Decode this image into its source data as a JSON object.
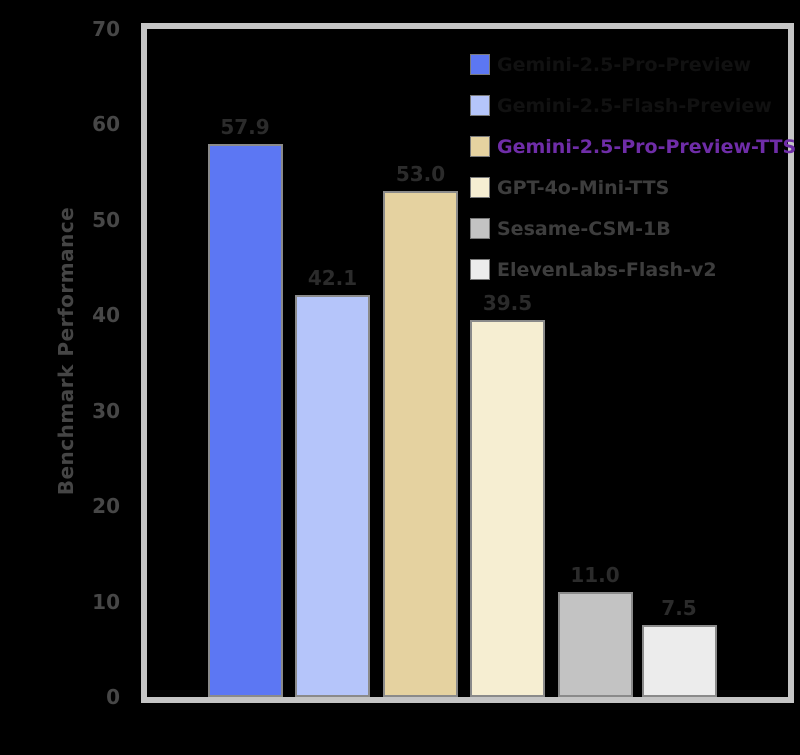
{
  "chart_data": {
    "type": "bar",
    "title": "",
    "xlabel": "",
    "ylabel": "Benchmark Performance",
    "ylim": [
      0,
      70
    ],
    "yticks": [
      0,
      10,
      20,
      30,
      40,
      50,
      60,
      70
    ],
    "grid": false,
    "legend_position": "upper-right",
    "categories": [
      "Gemini-2.5-Pro-Preview",
      "Gemini-2.5-Flash-Preview",
      "Gemini-2.5-Pro-Preview-TTS",
      "GPT-4o-Mini-TTS",
      "Sesame-CSM-1B",
      "ElevenLabs-Flash-v2"
    ],
    "values": [
      57.9,
      42.1,
      53.0,
      39.5,
      11.0,
      7.5
    ],
    "value_labels": [
      "57.9",
      "42.1",
      "53.0",
      "39.5",
      "11.0",
      "7.5"
    ],
    "bar_colors": [
      "#5C77F3",
      "#B5C5FA",
      "#E5D2A0",
      "#F6EED2",
      "#C3C3C3",
      "#ECECEC"
    ],
    "bar_edge_color": "#8A8A8A"
  },
  "legend": {
    "items": [
      {
        "label": "Gemini-2.5-Pro-Preview",
        "swatch_color": "#5C77F3",
        "text_color": "#111111"
      },
      {
        "label": "Gemini-2.5-Flash-Preview",
        "swatch_color": "#B5C5FA",
        "text_color": "#111111"
      },
      {
        "label": "Gemini-2.5-Pro-Preview-TTS",
        "swatch_color": "#E5D2A0",
        "text_color": "#6F2DA8"
      },
      {
        "label": "GPT-4o-Mini-TTS",
        "swatch_color": "#F6EED2",
        "text_color": "#3D3D3D"
      },
      {
        "label": "Sesame-CSM-1B",
        "swatch_color": "#C3C3C3",
        "text_color": "#3D3D3D"
      },
      {
        "label": "ElevenLabs-Flash-v2",
        "swatch_color": "#ECECEC",
        "text_color": "#3D3D3D"
      }
    ]
  },
  "colors": {
    "background": "#000000",
    "frame": "#C5C5C5",
    "tick_text": "#474747",
    "value_text": "#2B2B2B",
    "axis_title_text": "#454545",
    "highlight_text": "#6F2DA8"
  }
}
